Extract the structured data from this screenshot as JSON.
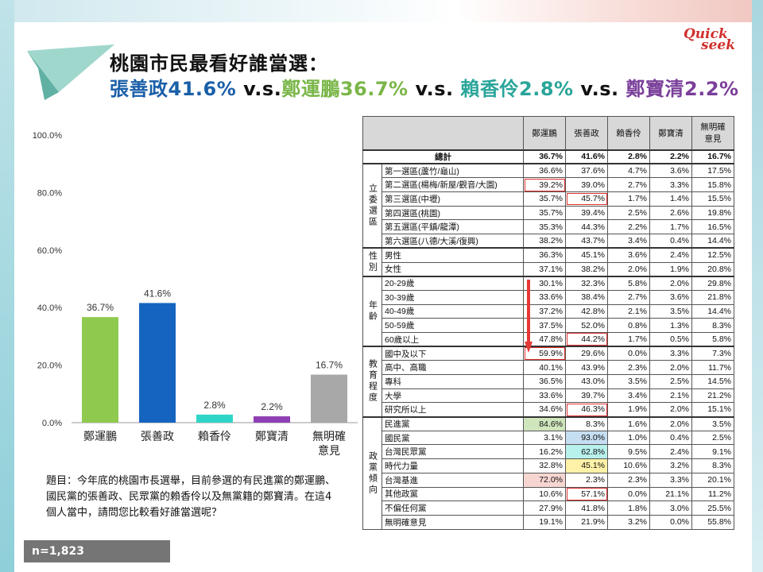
{
  "title": {
    "line1": "桃園市民最看好誰當選：",
    "seg1": "張善政41.6%",
    "vs1": " v.s.",
    "seg2": "鄭運鵬36.7%",
    "vs2": " v.s. ",
    "seg3": "賴香伶2.8%",
    "vs3": " v.s. ",
    "seg4": "鄭寶清2.2%"
  },
  "logo": {
    "line1": "Quick",
    "line2": "seek"
  },
  "colors": {
    "green": "#8fca4e",
    "blue": "#1565c0",
    "teal": "#2fd6c8",
    "purple": "#8e3fb5",
    "gray": "#a8a8a8",
    "red_arrow": "#e53935"
  },
  "chart_data": {
    "type": "bar",
    "categories": [
      "鄭運鵬",
      "張善政",
      "賴香伶",
      "鄭寶清",
      "無明確\n意見"
    ],
    "values": [
      36.7,
      41.6,
      2.8,
      2.2,
      16.7
    ],
    "labels": [
      "36.7%",
      "41.6%",
      "2.8%",
      "2.2%",
      "16.7%"
    ],
    "bar_colors": [
      "#8fca4e",
      "#1565c0",
      "#2fd6c8",
      "#8e3fb5",
      "#a8a8a8"
    ],
    "yticks": [
      "0.0%",
      "20.0%",
      "40.0%",
      "60.0%",
      "80.0%",
      "100.0%"
    ],
    "ylim": [
      0,
      100
    ],
    "grid": false
  },
  "question": "題目：今年底的桃園市長選舉，目前參選的有民進黨的鄭運鵬、國民黨的張善政、民眾黨的賴香伶以及無黨籍的鄭寶清。在這4個人當中，請問您比較看好誰當選呢？",
  "sample": "n=1,823",
  "table": {
    "headers": [
      "鄭運鵬",
      "張善政",
      "賴香伶",
      "鄭寶清",
      "無明確\n意見"
    ],
    "total": {
      "label": "總計",
      "values": [
        "36.7%",
        "41.6%",
        "2.8%",
        "2.2%",
        "16.7%"
      ]
    },
    "groups": [
      {
        "name": "立委選區",
        "rows": [
          {
            "label": "第一選區(蘆竹/龜山)",
            "values": [
              "36.6%",
              "37.6%",
              "4.7%",
              "3.6%",
              "17.5%"
            ]
          },
          {
            "label": "第二選區(楊梅/新屋/觀音/大園)",
            "values": [
              "39.2%",
              "39.0%",
              "2.7%",
              "3.3%",
              "15.8%"
            ]
          },
          {
            "label": "第三選區(中壢)",
            "values": [
              "35.7%",
              "45.7%",
              "1.7%",
              "1.4%",
              "15.5%"
            ]
          },
          {
            "label": "第四選區(桃園)",
            "values": [
              "35.7%",
              "39.4%",
              "2.5%",
              "2.6%",
              "19.8%"
            ]
          },
          {
            "label": "第五選區(平鎮/龍潭)",
            "values": [
              "35.3%",
              "44.3%",
              "2.2%",
              "1.7%",
              "16.5%"
            ]
          },
          {
            "label": "第六選區(八德/大溪/復興)",
            "values": [
              "38.2%",
              "43.7%",
              "3.4%",
              "0.4%",
              "14.4%"
            ]
          }
        ]
      },
      {
        "name": "性別",
        "rows": [
          {
            "label": "男性",
            "values": [
              "36.3%",
              "45.1%",
              "3.6%",
              "2.4%",
              "12.5%"
            ]
          },
          {
            "label": "女性",
            "values": [
              "37.1%",
              "38.2%",
              "2.0%",
              "1.9%",
              "20.8%"
            ]
          }
        ]
      },
      {
        "name": "年齡",
        "rows": [
          {
            "label": "20-29歲",
            "values": [
              "30.1%",
              "32.3%",
              "5.8%",
              "2.0%",
              "29.8%"
            ]
          },
          {
            "label": "30-39歲",
            "values": [
              "33.6%",
              "38.4%",
              "2.7%",
              "3.6%",
              "21.8%"
            ]
          },
          {
            "label": "40-49歲",
            "values": [
              "37.2%",
              "42.8%",
              "2.1%",
              "3.5%",
              "14.4%"
            ]
          },
          {
            "label": "50-59歲",
            "values": [
              "37.5%",
              "52.0%",
              "0.8%",
              "1.3%",
              "8.3%"
            ]
          },
          {
            "label": "60歲以上",
            "values": [
              "47.8%",
              "44.2%",
              "1.7%",
              "0.5%",
              "5.8%"
            ]
          }
        ]
      },
      {
        "name": "教育程度",
        "rows": [
          {
            "label": "國中及以下",
            "values": [
              "59.9%",
              "29.6%",
              "0.0%",
              "3.3%",
              "7.3%"
            ]
          },
          {
            "label": "高中、高職",
            "values": [
              "40.1%",
              "43.9%",
              "2.3%",
              "2.0%",
              "11.7%"
            ]
          },
          {
            "label": "專科",
            "values": [
              "36.5%",
              "43.0%",
              "3.5%",
              "2.5%",
              "14.5%"
            ]
          },
          {
            "label": "大學",
            "values": [
              "33.6%",
              "39.7%",
              "3.4%",
              "2.1%",
              "21.2%"
            ]
          },
          {
            "label": "研究所以上",
            "values": [
              "34.6%",
              "46.3%",
              "1.9%",
              "2.0%",
              "15.1%"
            ]
          }
        ]
      },
      {
        "name": "政黨傾向",
        "rows": [
          {
            "label": "民進黨",
            "values": [
              "84.6%",
              "8.3%",
              "1.6%",
              "2.0%",
              "3.5%"
            ]
          },
          {
            "label": "國民黨",
            "values": [
              "3.1%",
              "93.0%",
              "1.0%",
              "0.4%",
              "2.5%"
            ]
          },
          {
            "label": "台灣民眾黨",
            "values": [
              "16.2%",
              "62.8%",
              "9.5%",
              "2.4%",
              "9.1%"
            ]
          },
          {
            "label": "時代力量",
            "values": [
              "32.8%",
              "45.1%",
              "10.6%",
              "3.2%",
              "8.3%"
            ]
          },
          {
            "label": "台灣基進",
            "values": [
              "72.0%",
              "2.3%",
              "2.3%",
              "3.3%",
              "20.1%"
            ]
          },
          {
            "label": "其他政黨",
            "values": [
              "10.6%",
              "57.1%",
              "0.0%",
              "21.1%",
              "11.2%"
            ]
          },
          {
            "label": "不偏任何黨",
            "values": [
              "27.9%",
              "41.8%",
              "1.8%",
              "3.0%",
              "25.5%"
            ]
          },
          {
            "label": "無明確意見",
            "values": [
              "19.1%",
              "21.9%",
              "3.2%",
              "0.0%",
              "55.8%"
            ]
          }
        ]
      }
    ]
  }
}
